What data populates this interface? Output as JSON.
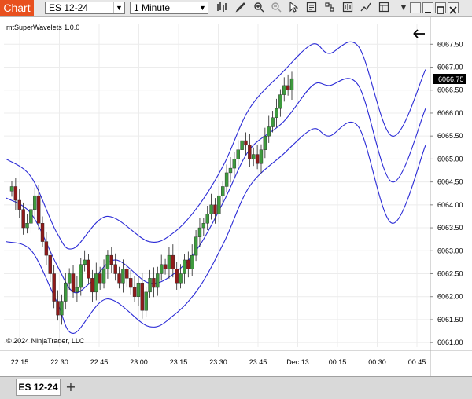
{
  "window": {
    "title": "Chart"
  },
  "toolbar": {
    "instrument": "ES 12-24",
    "interval": "1 Minute",
    "icons": [
      "bars-icon",
      "pencil-icon",
      "zoom-in-icon",
      "zoom-out-icon",
      "pointer-icon",
      "properties-icon",
      "strategy-icon",
      "chart-trader-icon",
      "data-box-icon"
    ]
  },
  "chart": {
    "indicator_label": "mtSuperWavelets 1.0.0",
    "copyright": "© 2024 NinjaTrader, LLC",
    "last_price": "6066.75",
    "colors": {
      "band": "#2b2bd6",
      "up": "#3e9a3e",
      "down": "#8f1a1a",
      "price_tag": "#000000"
    }
  },
  "chart_data": {
    "type": "candlestick",
    "instrument": "ES 12-24",
    "x_tick_labels": [
      "22:15",
      "22:30",
      "22:45",
      "23:00",
      "23:15",
      "23:30",
      "23:45",
      "Dec 13",
      "00:15",
      "00:30",
      "00:45"
    ],
    "y_tick_labels": [
      "6061.00",
      "6061.50",
      "6062.00",
      "6062.50",
      "6063.00",
      "6063.50",
      "6064.00",
      "6064.50",
      "6065.00",
      "6065.50",
      "6066.00",
      "6066.50",
      "6067.00",
      "6067.50"
    ],
    "ylim": [
      6060.8,
      6068.0
    ],
    "grid": true,
    "closes": [
      6064.4,
      6064.1,
      6063.9,
      6063.5,
      6063.6,
      6063.9,
      6064.2,
      6063.6,
      6063.2,
      6062.9,
      6062.5,
      6061.9,
      6061.6,
      6061.9,
      6062.3,
      6062.5,
      6062.1,
      6062.2,
      6062.7,
      6062.8,
      6062.4,
      6062.1,
      6062.5,
      6062.3,
      6062.6,
      6062.9,
      6062.7,
      6062.5,
      6062.3,
      6062.6,
      6062.4,
      6062.2,
      6062.0,
      6062.3,
      6061.7,
      6062.1,
      6062.4,
      6062.2,
      6062.5,
      6062.7,
      6062.6,
      6062.9,
      6062.6,
      6062.3,
      6062.5,
      6062.8,
      6062.6,
      6062.9,
      6063.3,
      6063.5,
      6063.6,
      6063.8,
      6064.0,
      6063.8,
      6064.2,
      6064.4,
      6064.7,
      6064.8,
      6065.0,
      6065.2,
      6065.4,
      6065.3,
      6065.0,
      6065.1,
      6064.9,
      6065.2,
      6065.5,
      6065.7,
      6065.9,
      6066.1,
      6066.4,
      6066.6,
      6066.5,
      6066.75
    ],
    "bands": {
      "middle": [
        [
          0,
          6064.15
        ],
        [
          6,
          6063.8
        ],
        [
          12,
          6062.7
        ],
        [
          16,
          6062.1
        ],
        [
          20,
          6062.3
        ],
        [
          26,
          6062.8
        ],
        [
          34,
          6062.3
        ],
        [
          40,
          6062.5
        ],
        [
          46,
          6063.1
        ],
        [
          52,
          6064.1
        ],
        [
          58,
          6065.2
        ],
        [
          66,
          6065.8
        ],
        [
          73,
          6066.6
        ],
        [
          77,
          6066.6
        ],
        [
          84,
          6066.6
        ],
        [
          92,
          6064.5
        ],
        [
          100,
          6066.1
        ]
      ],
      "upper": [
        [
          0,
          6065.0
        ],
        [
          6,
          6064.6
        ],
        [
          12,
          6063.4
        ],
        [
          16,
          6063.05
        ],
        [
          24,
          6063.75
        ],
        [
          34,
          6063.2
        ],
        [
          40,
          6063.4
        ],
        [
          46,
          6064.0
        ],
        [
          52,
          6064.9
        ],
        [
          58,
          6066.1
        ],
        [
          66,
          6066.9
        ],
        [
          73,
          6067.5
        ],
        [
          77,
          6067.3
        ],
        [
          84,
          6067.45
        ],
        [
          92,
          6065.5
        ],
        [
          100,
          6066.95
        ]
      ],
      "lower": [
        [
          0,
          6063.2
        ],
        [
          6,
          6063.0
        ],
        [
          12,
          6061.9
        ],
        [
          16,
          6061.2
        ],
        [
          24,
          6061.95
        ],
        [
          34,
          6061.35
        ],
        [
          40,
          6061.6
        ],
        [
          46,
          6062.2
        ],
        [
          52,
          6063.2
        ],
        [
          58,
          6064.4
        ],
        [
          66,
          6065.1
        ],
        [
          73,
          6065.65
        ],
        [
          77,
          6065.5
        ],
        [
          84,
          6065.7
        ],
        [
          92,
          6063.6
        ],
        [
          100,
          6065.3
        ]
      ]
    }
  }
}
